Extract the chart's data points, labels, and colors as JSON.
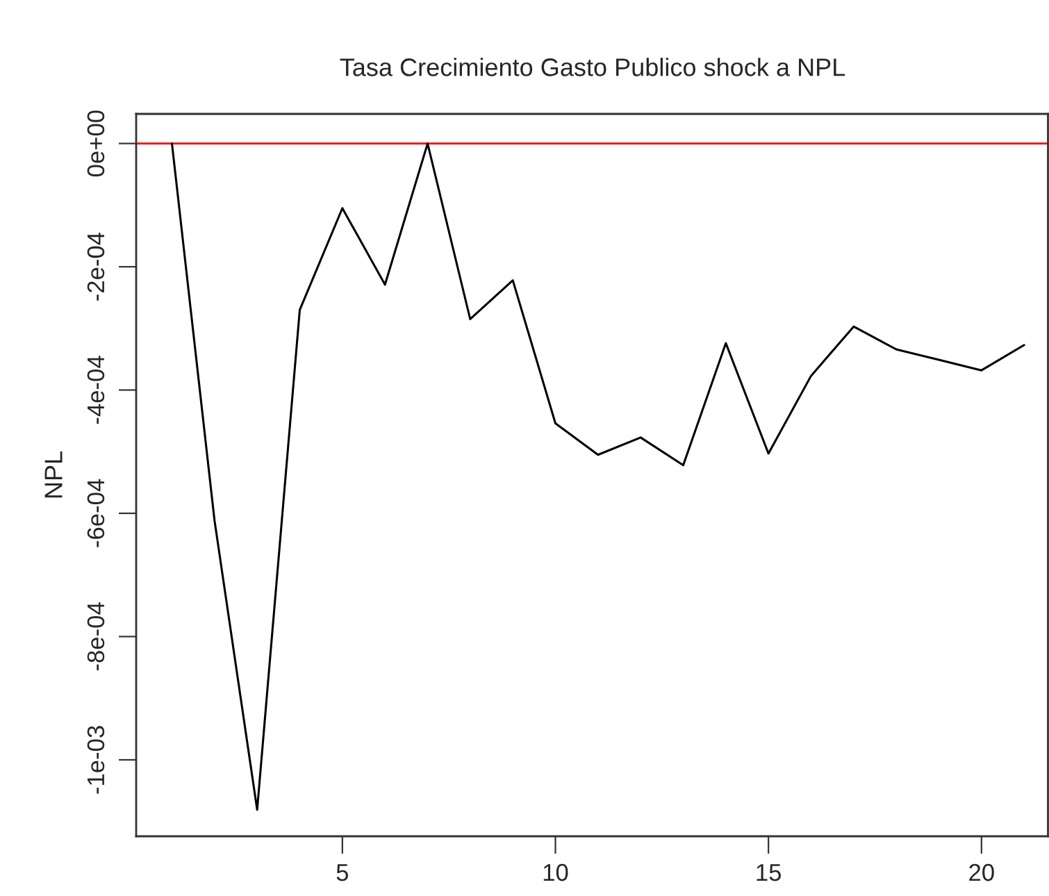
{
  "chart_data": {
    "type": "line",
    "title": "Tasa Crecimiento Gasto Publico shock a NPL",
    "ylabel": "NPL",
    "x": [
      1,
      2,
      3,
      4,
      5,
      6,
      7,
      8,
      9,
      10,
      11,
      12,
      13,
      14,
      15,
      16,
      17,
      18,
      19,
      20,
      21
    ],
    "series": [
      {
        "color": "#000000",
        "values": [
          0,
          -0.000612,
          -0.001081,
          -0.00027,
          -0.000105,
          -0.000229,
          0,
          -0.000285,
          -0.000222,
          -0.000454,
          -0.000505,
          -0.000477,
          -0.000522,
          -0.000324,
          -0.000503,
          -0.000377,
          -0.000297,
          -0.000334,
          -0.000351,
          -0.000368,
          -0.000327
        ]
      }
    ],
    "xlim": [
      0.16,
      21.56
    ],
    "xticks": [
      5,
      10,
      15,
      20
    ],
    "ylim": [
      -0.001124,
      4.8e-05
    ],
    "yticks": [
      {
        "value": 0,
        "label": "0e+00"
      },
      {
        "value": -0.0002,
        "label": "-2e-04"
      },
      {
        "value": -0.0004,
        "label": "-4e-04"
      },
      {
        "value": -0.0006,
        "label": "-6e-04"
      },
      {
        "value": -0.0008,
        "label": "-8e-04"
      },
      {
        "value": -0.001,
        "label": "-1e-03"
      }
    ],
    "ref_lines": [
      {
        "axis": "y",
        "value": 0,
        "color": "#ff0000"
      }
    ],
    "grid": false,
    "marker": "none",
    "line_style": "solid"
  }
}
